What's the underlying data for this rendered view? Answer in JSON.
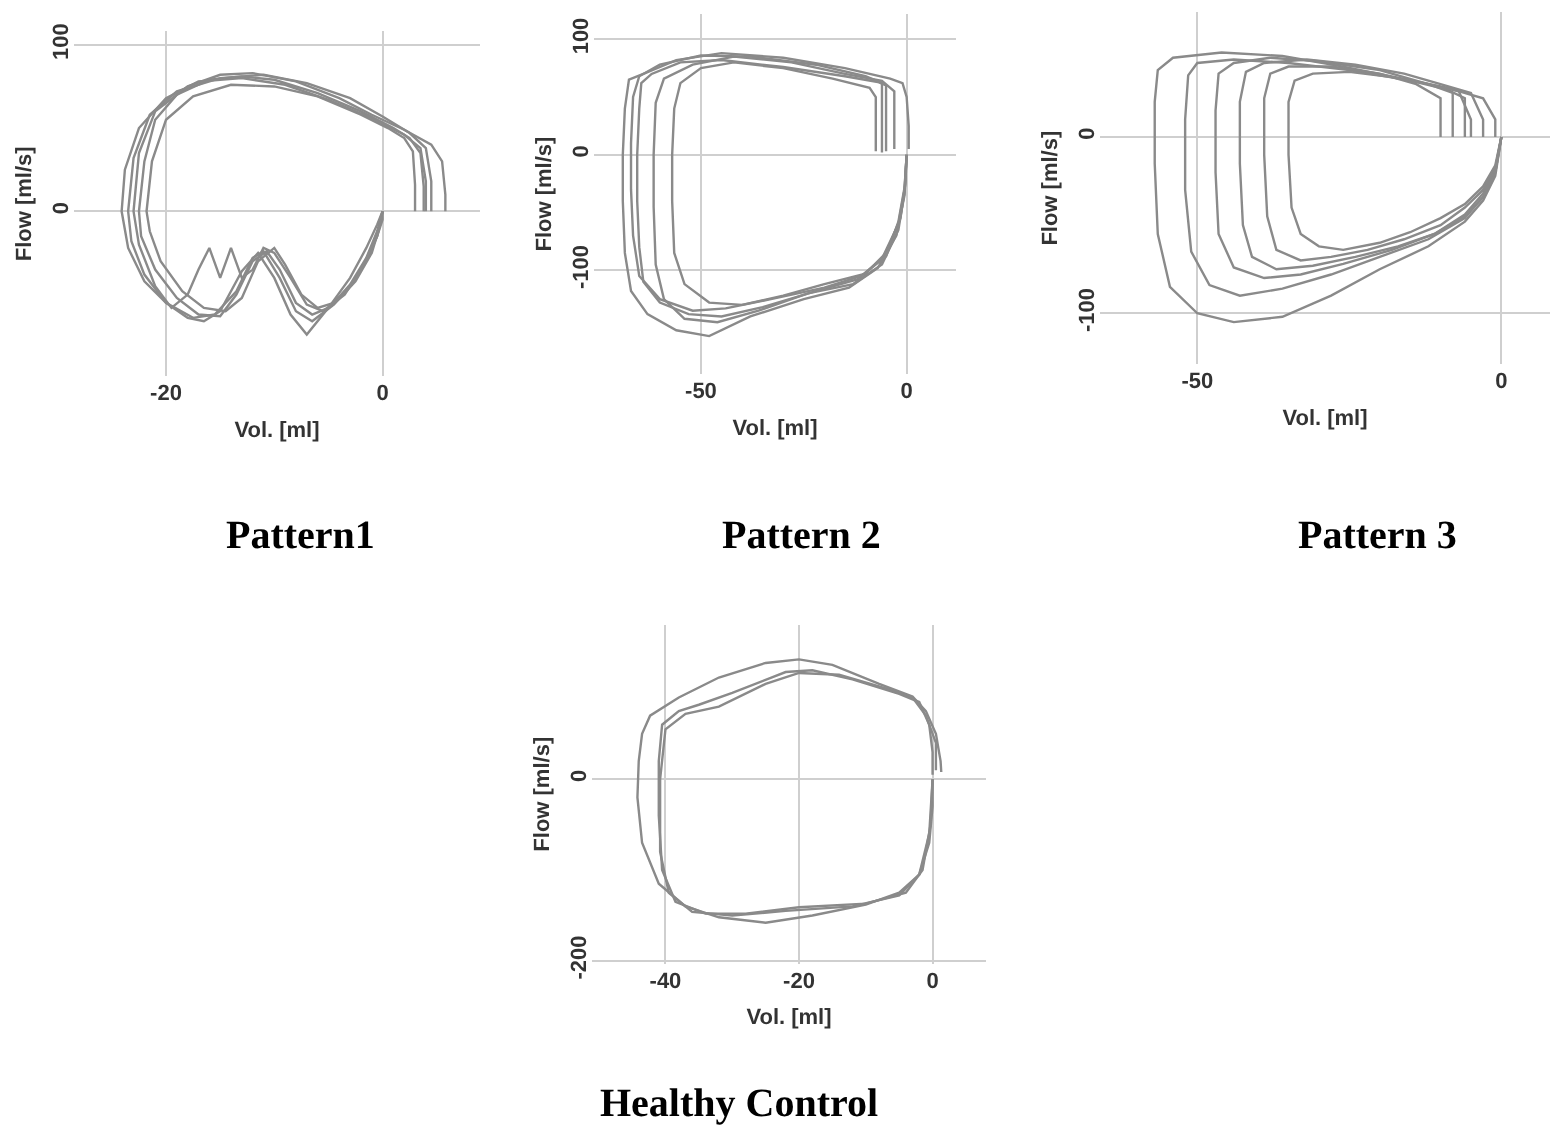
{
  "chart_data": [
    {
      "type": "line",
      "title": "Pattern1",
      "xlabel": "Vol. [ml]",
      "ylabel": "Flow [ml/s]",
      "xlim": [
        -28.5,
        9
      ],
      "ylim": [
        -99,
        108
      ],
      "xticks": [
        -20,
        0
      ],
      "yticks": [
        0,
        100
      ],
      "grid": true,
      "series": [
        {
          "color": "#8a8a8a",
          "x": [
            0,
            0,
            -0.5,
            -1.5,
            -3,
            -5,
            -6.5,
            -8,
            -9.5,
            -10.7,
            -12,
            -13.5,
            -15,
            -17,
            -19,
            -21,
            -22.3,
            -22.5,
            -22,
            -21,
            -19,
            -16,
            -13,
            -10,
            -6,
            -2,
            1,
            2.5,
            3.5,
            3.8,
            3.8
          ],
          "values": [
            0,
            -5,
            -15,
            -30,
            -45,
            -58,
            -62,
            -55,
            -35,
            -24,
            -30,
            -50,
            -63,
            -62,
            -52,
            -35,
            -15,
            0,
            30,
            55,
            70,
            79,
            81,
            79,
            71,
            60,
            50,
            44,
            35,
            15,
            0
          ]
        },
        {
          "color": "#8a8a8a",
          "x": [
            0,
            -0.3,
            -1,
            -2.5,
            -4.5,
            -6.5,
            -8,
            -9.5,
            -11,
            -12,
            -13.5,
            -15.5,
            -17.5,
            -20,
            -22,
            -23.2,
            -23.5,
            -23,
            -21.5,
            -19,
            -15,
            -11,
            -7,
            -3,
            0,
            2.5,
            4,
            4.5,
            4.5
          ],
          "values": [
            0,
            -10,
            -25,
            -42,
            -56,
            -66,
            -60,
            -40,
            -24,
            -28,
            -48,
            -62,
            -64,
            -55,
            -38,
            -18,
            0,
            32,
            58,
            72,
            80,
            82,
            77,
            68,
            57,
            47,
            38,
            18,
            0
          ]
        },
        {
          "color": "#8a8a8a",
          "x": [
            0,
            -0.5,
            -1.5,
            -3,
            -4.5,
            -6,
            -7.5,
            -9,
            -10,
            -11.5,
            -13,
            -14.5,
            -16.5,
            -18.5,
            -20.5,
            -21.5,
            -21.8,
            -21.3,
            -20,
            -17.5,
            -14,
            -10,
            -6,
            -2,
            0.5,
            2,
            2.8,
            3,
            3
          ],
          "values": [
            0,
            -12,
            -28,
            -44,
            -55,
            -58,
            -50,
            -32,
            -22,
            -30,
            -52,
            -60,
            -58,
            -48,
            -30,
            -12,
            0,
            30,
            55,
            69,
            76,
            75,
            69,
            58,
            50,
            44,
            36,
            16,
            0
          ]
        },
        {
          "color": "#8a8a8a",
          "x": [
            0,
            -0.5,
            -2,
            -3.5,
            -5.5,
            -7,
            -8.5,
            -10,
            -11,
            -12,
            -13,
            -14,
            -15,
            -16,
            -17,
            -18,
            -19.5,
            -21,
            -22.5,
            -23,
            -22.5,
            -21,
            -18,
            -15,
            -12,
            -8,
            -4,
            -1,
            2,
            4.5,
            5.5,
            5.8,
            5.8
          ],
          "values": [
            0,
            -15,
            -35,
            -50,
            -60,
            -56,
            -40,
            -25,
            -22,
            -35,
            -40,
            -22,
            -40,
            -22,
            -35,
            -50,
            -58,
            -45,
            -20,
            0,
            35,
            60,
            75,
            82,
            83,
            78,
            68,
            58,
            49,
            40,
            30,
            10,
            0
          ]
        },
        {
          "color": "#8a8a8a",
          "x": [
            0,
            -0.5,
            -1.5,
            -3,
            -5,
            -7,
            -8.5,
            -10,
            -11.5,
            -13,
            -15,
            -16.5,
            -18,
            -20,
            -22,
            -23.5,
            -24.1,
            -23.8,
            -22.5,
            -20,
            -17,
            -13,
            -9,
            -5,
            -1,
            2,
            3.5,
            4,
            4
          ],
          "values": [
            0,
            -8,
            -22,
            -40,
            -58,
            -74,
            -62,
            -40,
            -25,
            -36,
            -60,
            -66,
            -64,
            -55,
            -42,
            -22,
            0,
            25,
            50,
            68,
            78,
            80,
            76,
            67,
            56,
            46,
            38,
            18,
            0
          ]
        }
      ]
    },
    {
      "type": "line",
      "title": "Pattern 2",
      "xlabel": "Vol. [ml]",
      "ylabel": "Flow [ml/s]",
      "xlim": [
        -76,
        12
      ],
      "ylim": [
        -190,
        122
      ],
      "xticks": [
        -50,
        0
      ],
      "yticks": [
        -100,
        0,
        100
      ],
      "grid": true,
      "series": [
        {
          "color": "#8a8a8a",
          "x": [
            0,
            -0.5,
            -2,
            -6,
            -12,
            -22,
            -35,
            -45,
            -53,
            -60,
            -64,
            -65,
            -65.5,
            -65.5,
            -65,
            -64.5,
            -62,
            -55,
            -45,
            -30,
            -15,
            -7,
            -5,
            -5,
            -5,
            -5
          ],
          "values": [
            0,
            -30,
            -60,
            -90,
            -108,
            -118,
            -132,
            -140,
            -138,
            -128,
            -110,
            -80,
            -40,
            0,
            40,
            62,
            70,
            80,
            82,
            76,
            68,
            63,
            60,
            40,
            20,
            3
          ]
        },
        {
          "color": "#8a8a8a",
          "x": [
            0,
            -0.5,
            -2.5,
            -7,
            -14,
            -25,
            -38,
            -48,
            -56,
            -63,
            -67,
            -68.5,
            -69,
            -69,
            -68.5,
            -67.5,
            -64,
            -56,
            -45,
            -30,
            -15,
            -4,
            -1,
            0,
            0.5,
            0.5
          ],
          "values": [
            0,
            -35,
            -70,
            -98,
            -115,
            -125,
            -140,
            -157,
            -152,
            -138,
            -118,
            -85,
            -40,
            0,
            40,
            65,
            70,
            82,
            88,
            84,
            75,
            66,
            62,
            50,
            25,
            5
          ]
        },
        {
          "color": "#8a8a8a",
          "x": [
            0,
            -0.3,
            -1.5,
            -5,
            -10,
            -20,
            -30,
            -40,
            -48,
            -54,
            -56.5,
            -57,
            -57,
            -56.5,
            -55,
            -50,
            -42,
            -30,
            -18,
            -9,
            -7.5,
            -7.5,
            -7.5
          ],
          "values": [
            0,
            -25,
            -55,
            -85,
            -103,
            -112,
            -122,
            -130,
            -128,
            -112,
            -85,
            -40,
            0,
            40,
            62,
            75,
            80,
            75,
            66,
            58,
            50,
            25,
            3
          ]
        },
        {
          "color": "#8a8a8a",
          "x": [
            0,
            -0.5,
            -2,
            -6,
            -13,
            -24,
            -36,
            -46,
            -54,
            -59,
            -61,
            -61.5,
            -61.5,
            -61,
            -59,
            -52,
            -42,
            -28,
            -15,
            -6,
            -3,
            -3,
            -3
          ],
          "values": [
            0,
            -32,
            -65,
            -95,
            -112,
            -120,
            -135,
            -145,
            -142,
            -125,
            -95,
            -45,
            0,
            45,
            66,
            78,
            85,
            80,
            70,
            64,
            55,
            30,
            5
          ]
        },
        {
          "color": "#8a8a8a",
          "x": [
            0,
            -0.5,
            -2,
            -5,
            -11,
            -20,
            -33,
            -44,
            -52,
            -60,
            -65,
            -66.5,
            -67,
            -67,
            -66.5,
            -65,
            -60,
            -50,
            -38,
            -22,
            -10,
            -6,
            -6,
            -6
          ],
          "values": [
            0,
            -28,
            -58,
            -88,
            -105,
            -115,
            -125,
            -133,
            -135,
            -125,
            -105,
            -70,
            -30,
            10,
            50,
            68,
            78,
            86,
            85,
            78,
            68,
            62,
            30,
            2
          ]
        }
      ]
    },
    {
      "type": "line",
      "title": "Pattern 3",
      "xlabel": "Vol. [ml]",
      "ylabel": "Flow [ml/s]",
      "xlim": [
        -66,
        8
      ],
      "ylim": [
        -129,
        71
      ],
      "xticks": [
        -50,
        0
      ],
      "yticks": [
        -100,
        0
      ],
      "grid": true,
      "series": [
        {
          "color": "#8a8a8a",
          "x": [
            0,
            -1,
            -3,
            -6,
            -12,
            -20,
            -28,
            -36,
            -44,
            -50,
            -54.5,
            -56.5,
            -57,
            -57,
            -56.5,
            -54,
            -46,
            -36,
            -26,
            -16,
            -9,
            -3,
            -1,
            -1
          ],
          "values": [
            0,
            -22,
            -36,
            -48,
            -62,
            -75,
            -90,
            -102,
            -105,
            -100,
            -85,
            -55,
            -15,
            20,
            38,
            45,
            48,
            46,
            40,
            33,
            28,
            22,
            10,
            0
          ]
        },
        {
          "color": "#8a8a8a",
          "x": [
            0,
            -1,
            -3,
            -6,
            -12,
            -20,
            -28,
            -36,
            -43,
            -48,
            -51,
            -52,
            -52,
            -51.5,
            -50,
            -44,
            -35,
            -25,
            -15,
            -9,
            -6,
            -6,
            -6
          ],
          "values": [
            0,
            -20,
            -34,
            -46,
            -58,
            -68,
            -78,
            -86,
            -90,
            -84,
            -65,
            -30,
            10,
            35,
            42,
            44,
            42,
            38,
            32,
            27,
            22,
            10,
            0
          ]
        },
        {
          "color": "#8a8a8a",
          "x": [
            0,
            -1,
            -3,
            -6,
            -11,
            -18,
            -26,
            -33,
            -39,
            -44,
            -46.5,
            -47,
            -47,
            -46.5,
            -44,
            -38,
            -30,
            -20,
            -12,
            -8,
            -8,
            -8
          ],
          "values": [
            0,
            -18,
            -32,
            -44,
            -55,
            -64,
            -72,
            -78,
            -80,
            -74,
            -55,
            -20,
            15,
            36,
            42,
            45,
            43,
            38,
            30,
            25,
            10,
            0
          ]
        },
        {
          "color": "#8a8a8a",
          "x": [
            0,
            -1,
            -3,
            -6,
            -11,
            -17,
            -24,
            -31,
            -37,
            -41,
            -42.5,
            -43,
            -43,
            -42,
            -39,
            -32,
            -24,
            -16,
            -10,
            -5,
            -3,
            -3
          ],
          "values": [
            0,
            -20,
            -34,
            -45,
            -55,
            -62,
            -68,
            -73,
            -75,
            -68,
            -50,
            -15,
            20,
            37,
            42,
            44,
            41,
            36,
            30,
            25,
            10,
            0
          ]
        },
        {
          "color": "#8a8a8a",
          "x": [
            0,
            -1,
            -3,
            -6,
            -10,
            -16,
            -22,
            -28,
            -33,
            -37,
            -38.5,
            -39,
            -39,
            -38,
            -35,
            -28,
            -20,
            -14,
            -10,
            -10,
            -10
          ],
          "values": [
            0,
            -18,
            -30,
            -40,
            -50,
            -58,
            -64,
            -68,
            -70,
            -64,
            -45,
            -10,
            22,
            36,
            40,
            40,
            36,
            30,
            22,
            10,
            0
          ]
        },
        {
          "color": "#8a8a8a",
          "x": [
            0,
            -1,
            -3,
            -6,
            -10,
            -15,
            -20,
            -26,
            -30,
            -33,
            -34.5,
            -35,
            -35,
            -34,
            -31,
            -25,
            -18,
            -12,
            -7,
            -5,
            -5
          ],
          "values": [
            0,
            -16,
            -28,
            -38,
            -46,
            -54,
            -60,
            -64,
            -62,
            -55,
            -40,
            -10,
            20,
            32,
            36,
            37,
            34,
            30,
            26,
            10,
            0
          ]
        }
      ]
    },
    {
      "type": "line",
      "title": "Healthy Control",
      "xlabel": "Vol. [ml]",
      "ylabel": "Flow [ml/s]",
      "xlim": [
        -51,
        8
      ],
      "ylim": [
        -203,
        170
      ],
      "xticks": [
        -40,
        -20,
        0
      ],
      "yticks": [
        -200,
        0
      ],
      "grid": true,
      "series": [
        {
          "color": "#8a8a8a",
          "x": [
            0,
            0,
            -0.5,
            -2,
            -5,
            -10,
            -18,
            -25,
            -32,
            -37,
            -41,
            -43.5,
            -44.2,
            -44,
            -43.5,
            -42.3,
            -38,
            -32,
            -25,
            -20,
            -15,
            -8,
            -3,
            -1,
            0.5,
            1.2,
            1.3
          ],
          "values": [
            0,
            -30,
            -70,
            -105,
            -125,
            -138,
            -150,
            -158,
            -152,
            -140,
            -115,
            -70,
            -20,
            20,
            50,
            70,
            90,
            112,
            128,
            132,
            126,
            105,
            91,
            75,
            50,
            20,
            8
          ]
        },
        {
          "color": "#8a8a8a",
          "x": [
            0,
            -0.3,
            -1.5,
            -4,
            -10,
            -20,
            -28,
            -34,
            -38.5,
            -40.5,
            -41,
            -41,
            -40.5,
            -38,
            -35,
            -30,
            -22,
            -18,
            -12,
            -5,
            -2,
            -0.5,
            0,
            0
          ],
          "values": [
            0,
            -50,
            -100,
            -125,
            -137,
            -141,
            -148,
            -148,
            -135,
            -100,
            -40,
            20,
            60,
            75,
            82,
            95,
            118,
            120,
            110,
            94,
            85,
            60,
            30,
            5
          ]
        },
        {
          "color": "#8a8a8a",
          "x": [
            0,
            -0.5,
            -2,
            -5,
            -12,
            -22,
            -30,
            -36,
            -39.5,
            -40.8,
            -40.8,
            -40,
            -37,
            -32,
            -25,
            -20,
            -14,
            -7,
            -3,
            -1,
            0.5,
            0.5
          ],
          "values": [
            0,
            -60,
            -105,
            -128,
            -140,
            -145,
            -150,
            -146,
            -125,
            -80,
            0,
            55,
            72,
            80,
            105,
            117,
            115,
            100,
            90,
            70,
            40,
            10
          ]
        }
      ]
    }
  ]
}
